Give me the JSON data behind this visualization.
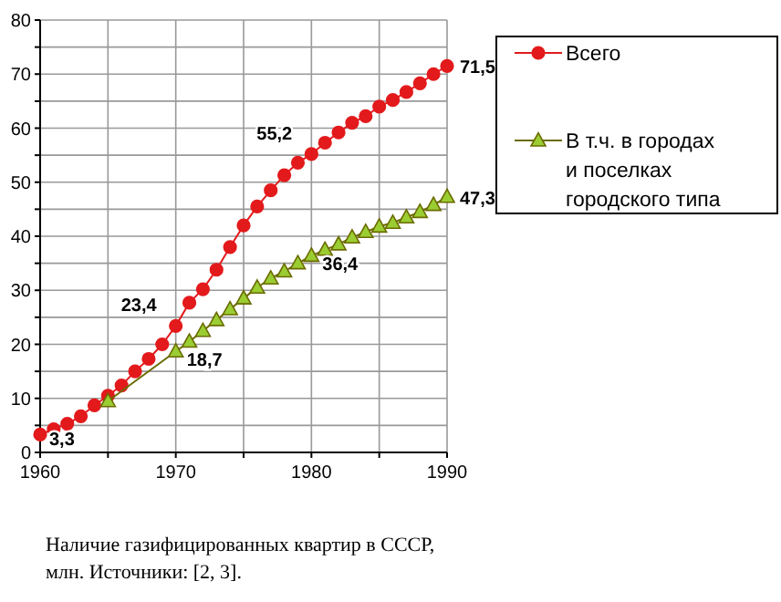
{
  "chart_data": {
    "type": "line",
    "xlim": [
      1960,
      1990
    ],
    "xticks": [
      1960,
      {
        "value": 1965,
        "label": null
      },
      1970,
      {
        "value": 1975,
        "label": null
      },
      1980,
      {
        "value": 1985,
        "label": null
      },
      1990
    ],
    "ylim": [
      0,
      80
    ],
    "yticks": [
      0,
      {
        "value": 5,
        "label": null
      },
      10,
      {
        "value": 15,
        "label": null
      },
      20,
      {
        "value": 25,
        "label": null
      },
      30,
      {
        "value": 35,
        "label": null
      },
      40,
      {
        "value": 45,
        "label": null
      },
      50,
      {
        "value": 55,
        "label": null
      },
      60,
      {
        "value": 65,
        "label": null
      },
      70,
      {
        "value": 75,
        "label": null
      },
      80
    ],
    "grid": true,
    "legend": "right",
    "line_style": "solid",
    "series": [
      {
        "name": "Всего",
        "color": "#e31a1c",
        "marker": "circle",
        "x": [
          1960,
          1961,
          1962,
          1963,
          1964,
          1965,
          1966,
          1967,
          1968,
          1969,
          1970,
          1971,
          1972,
          1973,
          1974,
          1975,
          1976,
          1977,
          1978,
          1979,
          1980,
          1981,
          1982,
          1983,
          1984,
          1985,
          1986,
          1987,
          1988,
          1989,
          1990
        ],
        "values": [
          3.3,
          4.3,
          5.3,
          6.7,
          8.7,
          10.5,
          12.4,
          15,
          17.3,
          20,
          23.4,
          27.7,
          30.2,
          33.8,
          38,
          42,
          45.5,
          48.5,
          51.3,
          53.6,
          55.2,
          57.3,
          59.2,
          61,
          62.2,
          64,
          65.2,
          66.7,
          68.3,
          70,
          71.5
        ],
        "value_labels": [
          "3,3",
          null,
          null,
          null,
          null,
          null,
          null,
          null,
          null,
          null,
          "23,4",
          null,
          null,
          null,
          null,
          null,
          null,
          null,
          null,
          null,
          "55,2",
          null,
          null,
          null,
          null,
          null,
          null,
          null,
          null,
          null,
          "71,5"
        ]
      },
      {
        "name": "В т.ч. в городах и поселках городского типа",
        "color": "#9acd32",
        "marker": "triangle",
        "x": [
          1965,
          1970,
          1971,
          1972,
          1973,
          1974,
          1975,
          1976,
          1977,
          1978,
          1979,
          1980,
          1981,
          1982,
          1983,
          1984,
          1985,
          1986,
          1987,
          1988,
          1989,
          1990
        ],
        "values": [
          9.5,
          18.7,
          20.5,
          22.5,
          24.5,
          26.5,
          28.5,
          30.5,
          32.2,
          33.5,
          35,
          36.4,
          37.5,
          38.5,
          39.8,
          40.8,
          41.8,
          42.5,
          43.5,
          44.5,
          45.8,
          47.3
        ],
        "value_labels": [
          null,
          "18,7",
          null,
          null,
          null,
          null,
          null,
          null,
          null,
          null,
          null,
          "36,4",
          null,
          null,
          null,
          null,
          null,
          null,
          null,
          null,
          null,
          "47,3"
        ]
      }
    ],
    "annotations": [
      "Наличие газифицированных квартир в СССР, млн. Источники:  [2, 3]."
    ]
  }
}
